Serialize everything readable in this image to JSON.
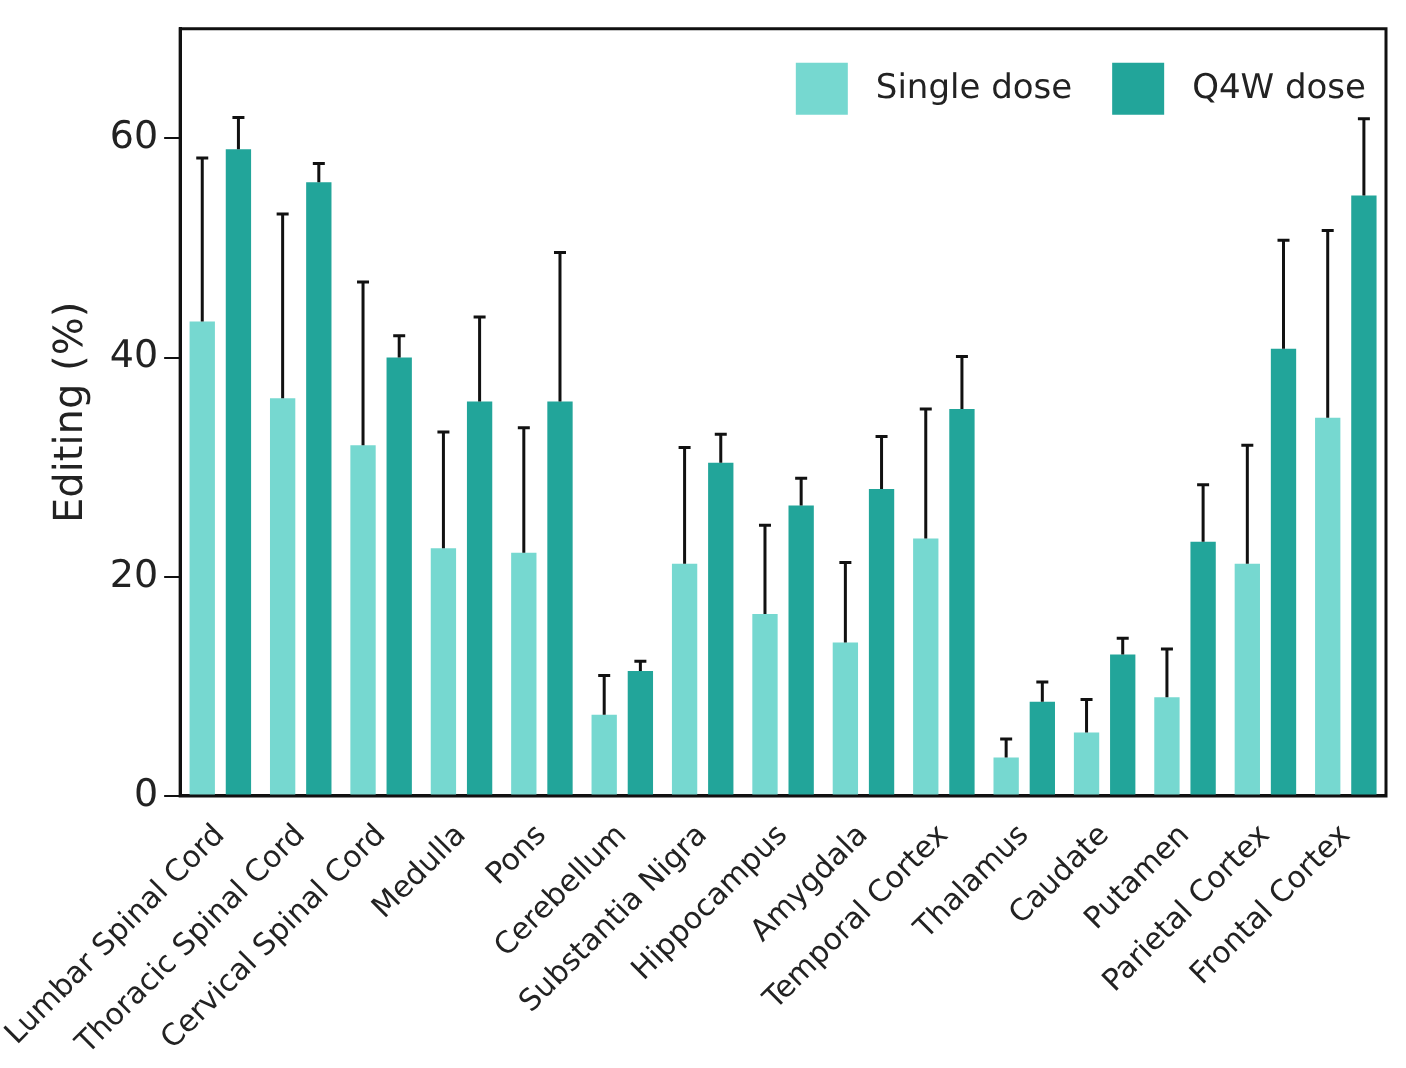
{
  "chart_data": {
    "type": "bar",
    "ylabel": "Editing (%)",
    "categories": [
      "Lumbar Spinal Cord",
      "Thoracic Spinal Cord",
      "Cervical Spinal Cord",
      "Medulla",
      "Pons",
      "Cerebellum",
      "Substantia Nigra",
      "Hippocampus",
      "Amygdala",
      "Temporal Cortex",
      "Thalamus",
      "Caudate",
      "Putamen",
      "Parietal Cortex",
      "Frontal Cortex"
    ],
    "series": [
      {
        "name": "Single dose",
        "color": "#76d8d0",
        "values": [
          43.3,
          36.3,
          32,
          22.6,
          22.2,
          7.4,
          21.2,
          16.6,
          14,
          23.5,
          3.5,
          5.8,
          9,
          21.2,
          34.5
        ],
        "errors": [
          [
            43.3,
            58.2
          ],
          [
            36.3,
            53.1
          ],
          [
            32,
            46.9
          ],
          [
            22.6,
            33.2
          ],
          [
            22.2,
            33.6
          ],
          [
            7.4,
            11
          ],
          [
            21.2,
            31.8
          ],
          [
            16.6,
            24.7
          ],
          [
            14,
            21.3
          ],
          [
            23.5,
            35.3
          ],
          [
            3.5,
            5.2
          ],
          [
            5.8,
            8.8
          ],
          [
            9,
            13.4
          ],
          [
            21.2,
            32
          ],
          [
            34.5,
            51.6
          ]
        ]
      },
      {
        "name": "Q4W dose",
        "color": "#22a59a",
        "values": [
          59,
          56,
          40,
          36,
          36,
          11.4,
          30.4,
          26.5,
          28,
          35.3,
          8.6,
          12.9,
          23.2,
          40.8,
          54.8
        ],
        "errors": [
          [
            59,
            61.9
          ],
          [
            56,
            57.7
          ],
          [
            40,
            42
          ],
          [
            36,
            43.7
          ],
          [
            36,
            49.6
          ],
          [
            11.4,
            12.3
          ],
          [
            30.4,
            33
          ],
          [
            26.5,
            29
          ],
          [
            28,
            32.8
          ],
          [
            35.3,
            40.1
          ],
          [
            8.6,
            10.4
          ],
          [
            12.9,
            14.4
          ],
          [
            23.2,
            28.4
          ],
          [
            40.8,
            50.7
          ],
          [
            54.8,
            61.8
          ]
        ]
      }
    ],
    "ylim": [
      0,
      70
    ],
    "yticks": [
      0,
      20,
      40,
      60
    ],
    "grid": false,
    "legend": "top right"
  }
}
